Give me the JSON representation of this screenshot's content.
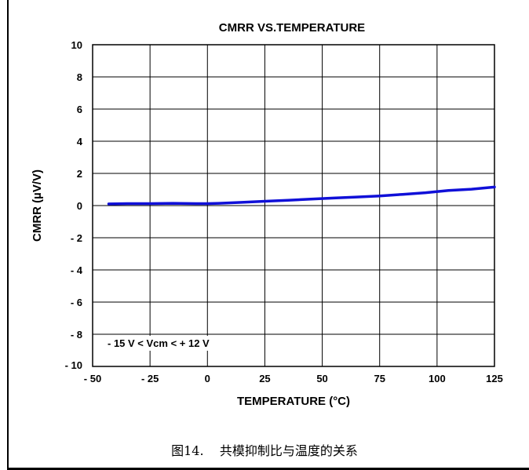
{
  "chart_data": {
    "type": "line",
    "title": "CMRR VS.TEMPERATURE",
    "xlabel": "TEMPERATURE (°C)",
    "ylabel": "CMRR (µV/V)",
    "xlim": [
      -50,
      125
    ],
    "ylim": [
      -10,
      10
    ],
    "x_ticks": [
      -50,
      -25,
      0,
      25,
      50,
      75,
      100,
      125
    ],
    "y_ticks": [
      10,
      8,
      6,
      4,
      2,
      0,
      -2,
      -4,
      -6,
      -8,
      -10
    ],
    "x_tick_labels": [
      "- 50",
      "- 25",
      "0",
      "25",
      "50",
      "75",
      "100",
      "125"
    ],
    "y_tick_labels": [
      "10",
      "8",
      "6",
      "4",
      "2",
      "0",
      "- 2",
      "- 4",
      "- 6",
      "- 8",
      "- 10"
    ],
    "grid": true,
    "annotation": "- 15 V < Vcm < + 12 V",
    "series": [
      {
        "color": "#1010d8",
        "x": [
          -43,
          -35,
          -25,
          -15,
          -5,
          0,
          5,
          15,
          25,
          35,
          45,
          55,
          65,
          75,
          85,
          95,
          105,
          115,
          125
        ],
        "y": [
          0.1,
          0.12,
          0.12,
          0.14,
          0.12,
          0.12,
          0.14,
          0.2,
          0.27,
          0.33,
          0.4,
          0.47,
          0.53,
          0.6,
          0.7,
          0.8,
          0.94,
          1.02,
          1.15
        ]
      }
    ]
  },
  "caption": {
    "number": "图14.",
    "text": "共模抑制比与温度的关系"
  }
}
